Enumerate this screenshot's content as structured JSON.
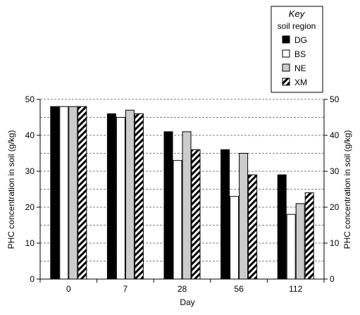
{
  "chart_data": {
    "type": "bar",
    "title": "",
    "xlabel": "Day",
    "ylabel": "PHC concentration in soil (g/kg)",
    "y2label": "PHC concentration in soil (g/kg)",
    "categories": [
      "0",
      "7",
      "28",
      "56",
      "112"
    ],
    "ylim": [
      0,
      50
    ],
    "yticks": [
      0,
      10,
      20,
      30,
      40,
      50
    ],
    "grid": "dashed horizontal lines every 5 g/kg",
    "legend": {
      "title": "Key",
      "subtitle": "soil region",
      "placement": "top-right"
    },
    "series": [
      {
        "name": "DG",
        "values": [
          48,
          46,
          41,
          36,
          29
        ],
        "color": "#000000",
        "pattern": "solid-black"
      },
      {
        "name": "BS",
        "values": [
          48,
          45,
          33,
          23,
          18
        ],
        "color": "#ffffff",
        "pattern": "white"
      },
      {
        "name": "NE",
        "values": [
          48,
          47,
          41,
          35,
          21
        ],
        "color": "#cccccc",
        "pattern": "light-gray"
      },
      {
        "name": "XM",
        "values": [
          48,
          46,
          36,
          29,
          24
        ],
        "color": "#000000",
        "pattern": "diagonal-hatch"
      }
    ]
  }
}
